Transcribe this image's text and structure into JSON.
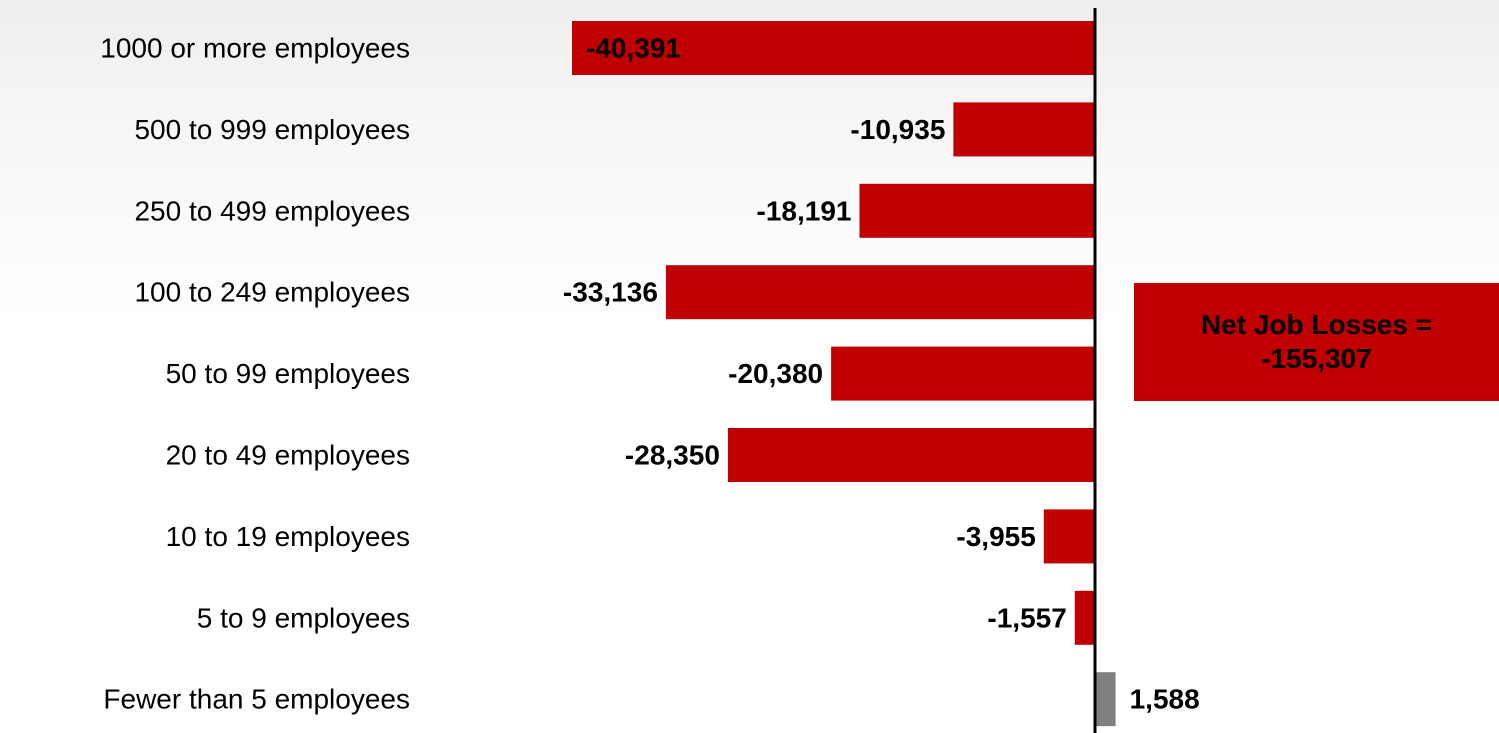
{
  "colors": {
    "negative": "#c00000",
    "positive": "#808080",
    "axis": "#000000",
    "text": "#000000"
  },
  "chart_data": {
    "type": "bar",
    "orientation": "horizontal",
    "title": "",
    "xlabel": "",
    "ylabel": "",
    "categories": [
      "1000 or more employees",
      "500 to 999 employees",
      "250 to 499 employees",
      "100 to 249 employees",
      "50 to 99 employees",
      "20 to 49 employees",
      "10 to 19 employees",
      "5 to 9 employees",
      "Fewer than 5 employees"
    ],
    "values": [
      -40391,
      -10935,
      -18191,
      -33136,
      -20380,
      -28350,
      -3955,
      -1557,
      1588
    ],
    "value_labels": [
      "-40,391",
      "-10,935",
      "-18,191",
      "-33,136",
      "-20,380",
      "-28,350",
      "-3,955",
      "-1,557",
      "1,588"
    ],
    "grid": false,
    "legend": "none",
    "annotation": {
      "line1": "Net Job Losses =",
      "line2": "-155,307"
    }
  }
}
